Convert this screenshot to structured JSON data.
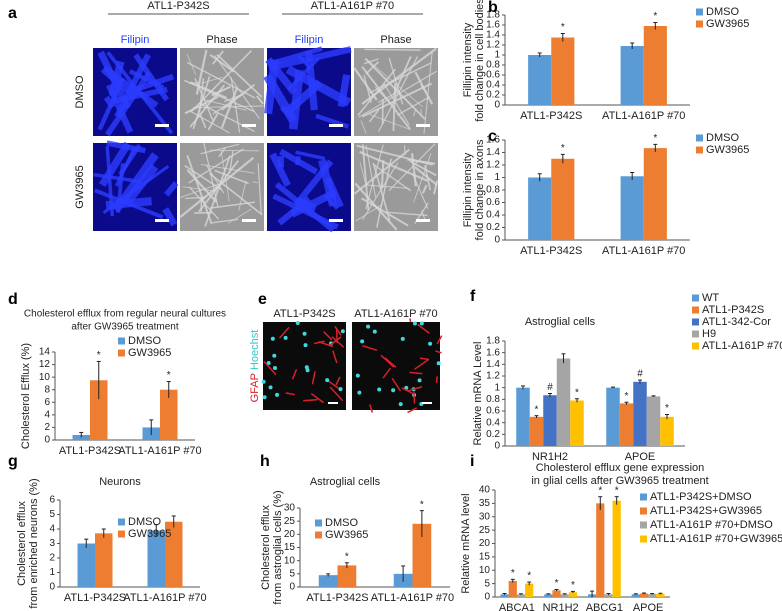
{
  "panel_a": {
    "label": "a",
    "groups": [
      "ATL1-P342S",
      "ATL1-A161P #70"
    ],
    "columns": [
      "Filipin",
      "Phase",
      "Filipin",
      "Phase"
    ],
    "rows": [
      "DMSO",
      "GW3965"
    ]
  },
  "panel_e": {
    "label": "e",
    "columns": [
      "ATL1-P342S",
      "ATL1-A161P #70"
    ],
    "stain": [
      "GFAP",
      "Hoechst"
    ]
  },
  "chart_data": [
    {
      "type": "bar",
      "label": "b",
      "ylabel": [
        "Fillipin intensity",
        "fold change in cell bodies"
      ],
      "categories": [
        "ATL1-P342S",
        "ATL1-A161P #70"
      ],
      "series": [
        {
          "name": "DMSO",
          "color": "#5b9bd5",
          "values": [
            1.0,
            1.18
          ],
          "errors": [
            0.04,
            0.06
          ]
        },
        {
          "name": "GW3965",
          "color": "#ed7d31",
          "values": [
            1.35,
            1.58
          ],
          "errors": [
            0.08,
            0.07
          ],
          "marks": [
            "*",
            "*"
          ]
        }
      ],
      "ylim": [
        0,
        1.8
      ],
      "yticks": [
        0,
        0.2,
        0.4,
        0.6,
        0.8,
        1,
        1.2,
        1.4,
        1.6,
        1.8
      ]
    },
    {
      "type": "bar",
      "label": "c",
      "ylabel": [
        "Fillipin intensity",
        "fold change in axons"
      ],
      "categories": [
        "ATL1-P342S",
        "ATL1-A161P #70"
      ],
      "series": [
        {
          "name": "DMSO",
          "color": "#5b9bd5",
          "values": [
            1.0,
            1.02
          ],
          "errors": [
            0.06,
            0.06
          ]
        },
        {
          "name": "GW3965",
          "color": "#ed7d31",
          "values": [
            1.3,
            1.47
          ],
          "errors": [
            0.07,
            0.06
          ],
          "marks": [
            "*",
            "*"
          ]
        }
      ],
      "ylim": [
        0,
        1.6
      ],
      "yticks": [
        0,
        0.2,
        0.4,
        0.6,
        0.8,
        1,
        1.2,
        1.4,
        1.6
      ]
    },
    {
      "type": "bar",
      "label": "d",
      "title": [
        "Cholesterol efflux from regular neural cultures",
        "after GW3965 treatment"
      ],
      "ylabel": [
        "Cholesterol Efflux (%)"
      ],
      "categories": [
        "ATL1-P342S",
        "ATL1-A161P #70"
      ],
      "series": [
        {
          "name": "DMSO",
          "color": "#5b9bd5",
          "values": [
            0.8,
            2.0
          ],
          "errors": [
            0.4,
            1.2
          ]
        },
        {
          "name": "GW3965",
          "color": "#ed7d31",
          "values": [
            9.5,
            8.0
          ],
          "errors": [
            3.0,
            1.3
          ],
          "marks": [
            "*",
            "*"
          ]
        }
      ],
      "ylim": [
        0,
        14
      ],
      "yticks": [
        0,
        2,
        4,
        6,
        8,
        10,
        12,
        14
      ]
    },
    {
      "type": "bar",
      "label": "f",
      "title": [
        "Astroglial cells"
      ],
      "ylabel": [
        "Relative mRNA Level"
      ],
      "categories": [
        "NR1H2",
        "APOE"
      ],
      "series": [
        {
          "name": "WT",
          "color": "#5b9bd5",
          "values": [
            1.0,
            1.0
          ],
          "errors": [
            0.03,
            0.01
          ]
        },
        {
          "name": "ATL1-P342S",
          "color": "#ed7d31",
          "values": [
            0.5,
            0.73
          ],
          "errors": [
            0.02,
            0.02
          ],
          "marks": [
            "*",
            "*"
          ]
        },
        {
          "name": "ATL1-342-Cor",
          "color": "#4472c4",
          "values": [
            0.87,
            1.1
          ],
          "errors": [
            0.03,
            0.03
          ],
          "marks": [
            "#",
            "#"
          ]
        },
        {
          "name": "H9",
          "color": "#a5a5a5",
          "values": [
            1.5,
            0.85
          ],
          "errors": [
            0.08,
            0.01
          ]
        },
        {
          "name": "ATL1-A161P #70",
          "color": "#ffc000",
          "values": [
            0.78,
            0.5
          ],
          "errors": [
            0.03,
            0.04
          ],
          "marks": [
            "*",
            "*"
          ]
        }
      ],
      "ylim": [
        0,
        1.8
      ],
      "yticks": [
        0,
        0.2,
        0.4,
        0.6,
        0.8,
        1,
        1.2,
        1.4,
        1.6,
        1.8
      ]
    },
    {
      "type": "bar",
      "label": "g",
      "title": [
        "Neurons"
      ],
      "ylabel": [
        "Cholesterol efflux",
        "from enriched neurons (%)"
      ],
      "categories": [
        "ATL1-P342S",
        "ATL1-A161P #70"
      ],
      "series": [
        {
          "name": "DMSO",
          "color": "#5b9bd5",
          "values": [
            3.0,
            3.9
          ],
          "errors": [
            0.3,
            0.4
          ]
        },
        {
          "name": "GW3965",
          "color": "#ed7d31",
          "values": [
            3.7,
            4.5
          ],
          "errors": [
            0.3,
            0.4
          ]
        }
      ],
      "ylim": [
        0,
        6
      ],
      "yticks": [
        0,
        1,
        2,
        3,
        4,
        5,
        6
      ]
    },
    {
      "type": "bar",
      "label": "h",
      "title": [
        "Astroglial cells"
      ],
      "ylabel": [
        "Cholesterol efflux",
        "from astroglial cells (%)"
      ],
      "categories": [
        "ATL1-P342S",
        "ATL1-A161P #70"
      ],
      "series": [
        {
          "name": "DMSO",
          "color": "#5b9bd5",
          "values": [
            4.5,
            5.0
          ],
          "errors": [
            0.5,
            3.0
          ]
        },
        {
          "name": "GW3965",
          "color": "#ed7d31",
          "values": [
            8.2,
            24
          ],
          "errors": [
            1.0,
            5.0
          ],
          "marks": [
            "*",
            "*"
          ]
        }
      ],
      "ylim": [
        0,
        30
      ],
      "yticks": [
        0,
        5,
        10,
        15,
        20,
        25,
        30
      ]
    },
    {
      "type": "bar",
      "label": "i",
      "title": [
        "Cholesterol efflux gene expression",
        "in glial cells after GW3965 treatment"
      ],
      "ylabel": [
        "Relative mRNA level"
      ],
      "categories": [
        "ABCA1",
        "NR1H2",
        "ABCG1",
        "APOE"
      ],
      "series": [
        {
          "name": "ATL1-P342S+DMSO",
          "color": "#5b9bd5",
          "values": [
            1,
            1,
            1,
            1
          ],
          "errors": [
            0.3,
            0.2,
            1.2,
            0.2
          ]
        },
        {
          "name": "ATL1-P342S+GW3965",
          "color": "#ed7d31",
          "values": [
            6,
            2.5,
            35,
            1.3
          ],
          "errors": [
            0.6,
            0.3,
            2.5,
            0.2
          ],
          "marks": [
            "*",
            "*",
            "*",
            null
          ]
        },
        {
          "name": "ATL1-A161P #70+DMSO",
          "color": "#a5a5a5",
          "values": [
            1,
            1,
            1,
            1.1
          ],
          "errors": [
            0.2,
            0.2,
            0.3,
            0.2
          ]
        },
        {
          "name": "ATL1-A161P #70+GW3965",
          "color": "#ffc000",
          "values": [
            5,
            1.8,
            36,
            1.2
          ],
          "errors": [
            0.6,
            0.3,
            1.5,
            0.2
          ],
          "marks": [
            "*",
            "*",
            "*",
            null
          ]
        }
      ],
      "ylim": [
        0,
        40
      ],
      "yticks": [
        0,
        5,
        10,
        15,
        20,
        25,
        30,
        35,
        40
      ]
    }
  ]
}
